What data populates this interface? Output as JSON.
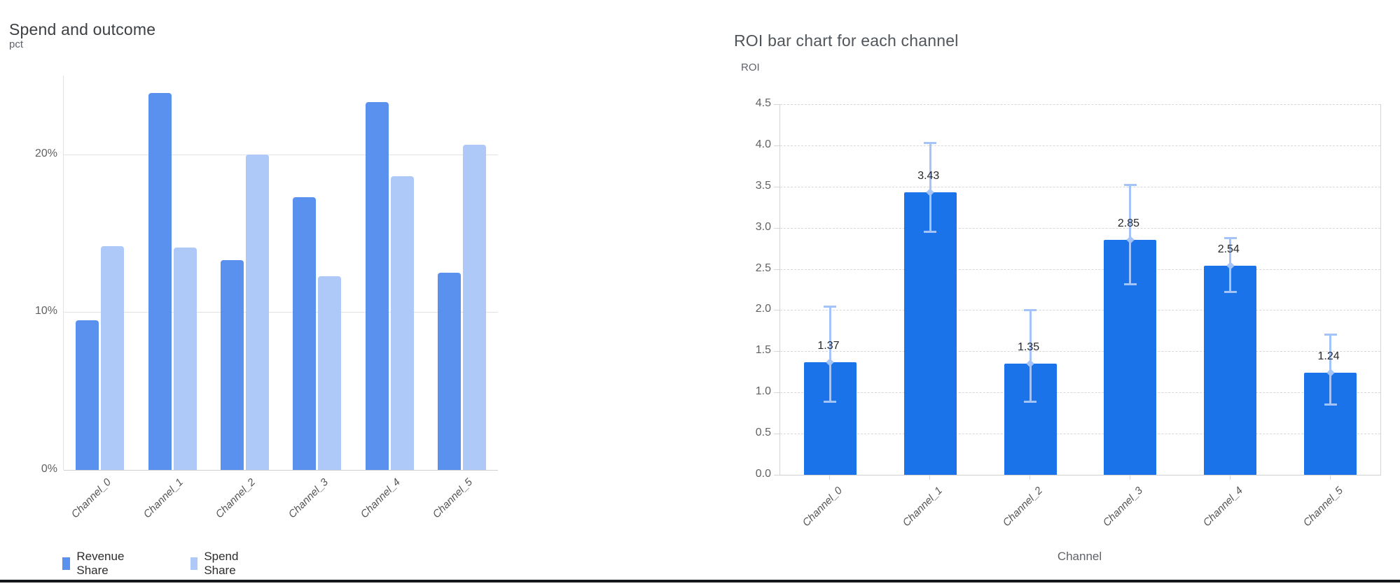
{
  "colors": {
    "left_title": "#3c4043",
    "right_title": "#50555a",
    "axis_unit": "#5f6368",
    "tick_text": "#616161",
    "xlabel_text": "#555555",
    "data_label": "#26282b",
    "legend_text": "#2d2d2d",
    "grid_left": "#e2e2e2",
    "grid_right": "#d8d8d8",
    "plot_border": "#d4d4d4",
    "baseline": "#cfcfcf",
    "bottom_band": "#15181b"
  },
  "chart_data": [
    {
      "type": "bar",
      "title": "Spend and outcome",
      "ylabel": "pct",
      "xlabel": "",
      "categories": [
        "Channel_0",
        "Channel_1",
        "Channel_2",
        "Channel_3",
        "Channel_4",
        "Channel_5"
      ],
      "series": [
        {
          "name": "Revenue Share",
          "color": "#5b91ee",
          "values": [
            9.5,
            23.9,
            13.3,
            17.3,
            23.3,
            12.5
          ]
        },
        {
          "name": "Spend Share",
          "color": "#aec9f8",
          "values": [
            14.2,
            14.1,
            20.0,
            12.3,
            18.6,
            20.6
          ]
        }
      ],
      "y_ticks": [
        {
          "label": "0%",
          "value": 0
        },
        {
          "label": "10%",
          "value": 10
        },
        {
          "label": "20%",
          "value": 20
        }
      ],
      "ylim": [
        0,
        25
      ],
      "unit": "percent",
      "grid": "horizontal-solid",
      "legend_position": "bottom-left"
    },
    {
      "type": "bar",
      "title": "ROI bar chart for each channel",
      "ylabel": "ROI",
      "xlabel": "Channel",
      "categories": [
        "Channel_0",
        "Channel_1",
        "Channel_2",
        "Channel_3",
        "Channel_4",
        "Channel_5"
      ],
      "values": [
        1.37,
        3.43,
        1.35,
        2.85,
        2.54,
        1.24
      ],
      "bar_labels": [
        "1.37",
        "3.43",
        "1.35",
        "2.85",
        "2.54",
        "1.24"
      ],
      "error_high": [
        2.05,
        4.03,
        2.0,
        3.52,
        2.88,
        1.71
      ],
      "error_low": [
        0.88,
        2.95,
        0.88,
        2.31,
        2.22,
        0.85
      ],
      "y_ticks": [
        {
          "label": "0.0",
          "value": 0.0
        },
        {
          "label": "0.5",
          "value": 0.5
        },
        {
          "label": "1.0",
          "value": 1.0
        },
        {
          "label": "1.5",
          "value": 1.5
        },
        {
          "label": "2.0",
          "value": 2.0
        },
        {
          "label": "2.5",
          "value": 2.5
        },
        {
          "label": "3.0",
          "value": 3.0
        },
        {
          "label": "3.5",
          "value": 3.5
        },
        {
          "label": "4.0",
          "value": 4.0
        },
        {
          "label": "4.5",
          "value": 4.5
        }
      ],
      "ylim": [
        0,
        4.5
      ],
      "bar_color": "#1a73e8",
      "error_color": "#a3c3f9",
      "grid": "horizontal-dashed",
      "legend_position": "none"
    }
  ]
}
